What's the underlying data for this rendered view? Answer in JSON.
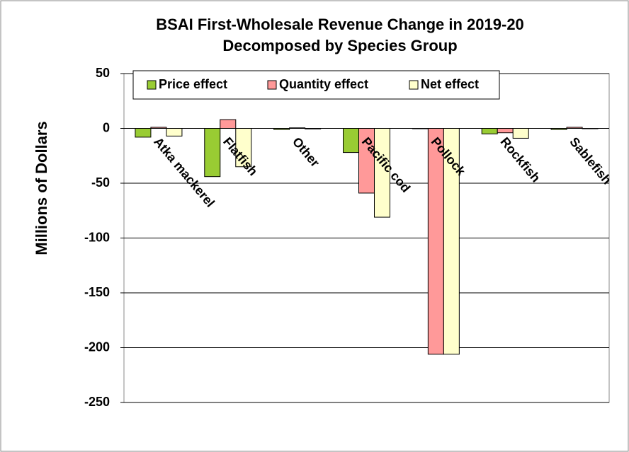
{
  "chart_data": {
    "type": "bar",
    "title": [
      "BSAI First-Wholesale Revenue Change in 2019-20",
      "Decomposed by Species Group"
    ],
    "y_label": "Millions of Dollars",
    "categories": [
      "Atka mackerel",
      "Flatfish",
      "Other",
      "Pacific cod",
      "Pollock",
      "Rockfish",
      "Sablefish"
    ],
    "series": [
      {
        "name": "Price effect",
        "color": "#99cc33",
        "values": [
          -8,
          -44,
          -1,
          -22,
          0,
          -5,
          -1
        ]
      },
      {
        "name": "Quantity effect",
        "color": "#ff9999",
        "values": [
          1,
          8,
          0.5,
          -59,
          -206,
          -4,
          1
        ]
      },
      {
        "name": "Net effect",
        "color": "#ffffcc",
        "values": [
          -7,
          -35,
          -0.5,
          -81,
          -206,
          -9,
          0
        ]
      }
    ],
    "ylim": [
      -250,
      50
    ],
    "yticks": [
      50,
      0,
      -50,
      -100,
      -150,
      -200,
      -250
    ],
    "grid": true,
    "legend": "top"
  }
}
